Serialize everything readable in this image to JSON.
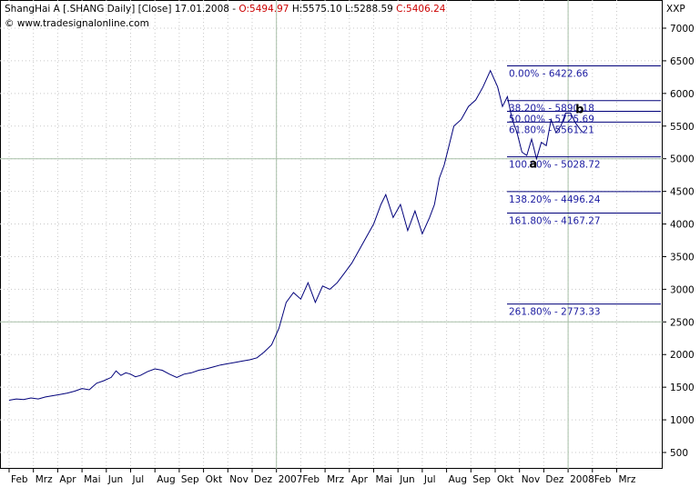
{
  "header": {
    "instrument": "ShangHai A [.SHANG  Daily] [Close] 17.01.2008 -",
    "open": "O:5494.97",
    "high": "H:5575.10",
    "low": "L:5288.59",
    "close": "C:5406.24",
    "copyright": "© www.tradesignalonline.com",
    "axis_unit": "XXP",
    "colors": {
      "open": "#cc0000",
      "close": "#cc0000",
      "price_line": "#00007a",
      "fib": "#00007a",
      "grid": "#c8c8c8"
    }
  },
  "chart_data": {
    "type": "line",
    "title": "ShangHai A [.SHANG  Daily] [Close] 17.01.2008",
    "ylim": [
      0,
      7300
    ],
    "y_ticks": [
      500,
      1000,
      1500,
      2000,
      2500,
      3000,
      3500,
      4000,
      4500,
      5000,
      5500,
      6000,
      6500,
      7000
    ],
    "y_tick_labels": [
      "500",
      "1000",
      "1500",
      "2000",
      "2500",
      "3000",
      "3500",
      "4000",
      "4500",
      "5000",
      "5500",
      "6000",
      "6500",
      "7000"
    ],
    "x_labels": [
      "Feb",
      "Mrz",
      "Apr",
      "Mai",
      "Jun",
      "Jul",
      "Aug",
      "Sep",
      "Okt",
      "Nov",
      "Dez",
      "2007",
      "Feb",
      "Mrz",
      "Apr",
      "Mai",
      "Jun",
      "Jul",
      "Aug",
      "Sep",
      "Okt",
      "Nov",
      "Dez",
      "2008",
      "Feb",
      "Mrz"
    ],
    "x_range_months": [
      0,
      27
    ],
    "grid": true,
    "series": [
      {
        "x": [
          0.0,
          0.3,
          0.6,
          0.9,
          1.2,
          1.5,
          1.8,
          2.1,
          2.4,
          2.7,
          3.0,
          3.3,
          3.6,
          3.9,
          4.2,
          4.4,
          4.6,
          4.8,
          5.0,
          5.2,
          5.4,
          5.7,
          6.0,
          6.3,
          6.6,
          6.9,
          7.2,
          7.5,
          7.8,
          8.1,
          8.4,
          8.7,
          9.0,
          9.3,
          9.6,
          9.9,
          10.2,
          10.5,
          10.8,
          11.1,
          11.4,
          11.7,
          12.0,
          12.3,
          12.6,
          12.9,
          13.2,
          13.5,
          13.8,
          14.1,
          14.4,
          14.7,
          15.0,
          15.3,
          15.5,
          15.8,
          16.1,
          16.4,
          16.7,
          17.0,
          17.3,
          17.5,
          17.7,
          17.9,
          18.1,
          18.3,
          18.6,
          18.9,
          19.2,
          19.5,
          19.8,
          20.1,
          20.3,
          20.5,
          20.7,
          20.9,
          21.1,
          21.3,
          21.5,
          21.7,
          21.9,
          22.1,
          22.3,
          22.5,
          22.7,
          22.9,
          23.1,
          23.3,
          23.5,
          23.6
        ],
        "y": [
          1300,
          1320,
          1310,
          1335,
          1320,
          1350,
          1370,
          1390,
          1410,
          1440,
          1480,
          1460,
          1560,
          1600,
          1650,
          1750,
          1680,
          1720,
          1700,
          1660,
          1680,
          1740,
          1780,
          1760,
          1700,
          1650,
          1700,
          1720,
          1760,
          1780,
          1810,
          1840,
          1860,
          1880,
          1900,
          1920,
          1950,
          2040,
          2150,
          2400,
          2800,
          2950,
          2850,
          3100,
          2800,
          3050,
          3000,
          3100,
          3250,
          3400,
          3600,
          3800,
          4000,
          4300,
          4450,
          4100,
          4300,
          3900,
          4200,
          3850,
          4100,
          4300,
          4700,
          4900,
          5200,
          5500,
          5600,
          5800,
          5900,
          6100,
          6350,
          6100,
          5800,
          5950,
          5600,
          5400,
          5100,
          5050,
          5300,
          5000,
          5250,
          5200,
          5600,
          5400,
          5500,
          5700,
          5700,
          5550,
          5450,
          5406
        ]
      }
    ],
    "fibonacci_levels": [
      {
        "label": "0.00% - 6422.66",
        "value": 6422.66
      },
      {
        "label": "38.20% - 5890.18",
        "value": 5890.18
      },
      {
        "label": "50.00% - 5725.69",
        "value": 5725.69
      },
      {
        "label": "61.80% - 5561.21",
        "value": 5561.21
      },
      {
        "label": "100.00% - 5028.72",
        "value": 5028.72
      },
      {
        "label": "138.20% - 4496.24",
        "value": 4496.24
      },
      {
        "label": "161.80% - 4167.27",
        "value": 4167.27
      },
      {
        "label": "261.80% - 2773.33",
        "value": 2773.33
      }
    ],
    "annotations": [
      {
        "text": "a",
        "x": 21.4,
        "y": 5000
      },
      {
        "text": "b",
        "x": 23.3,
        "y": 5840
      }
    ]
  }
}
